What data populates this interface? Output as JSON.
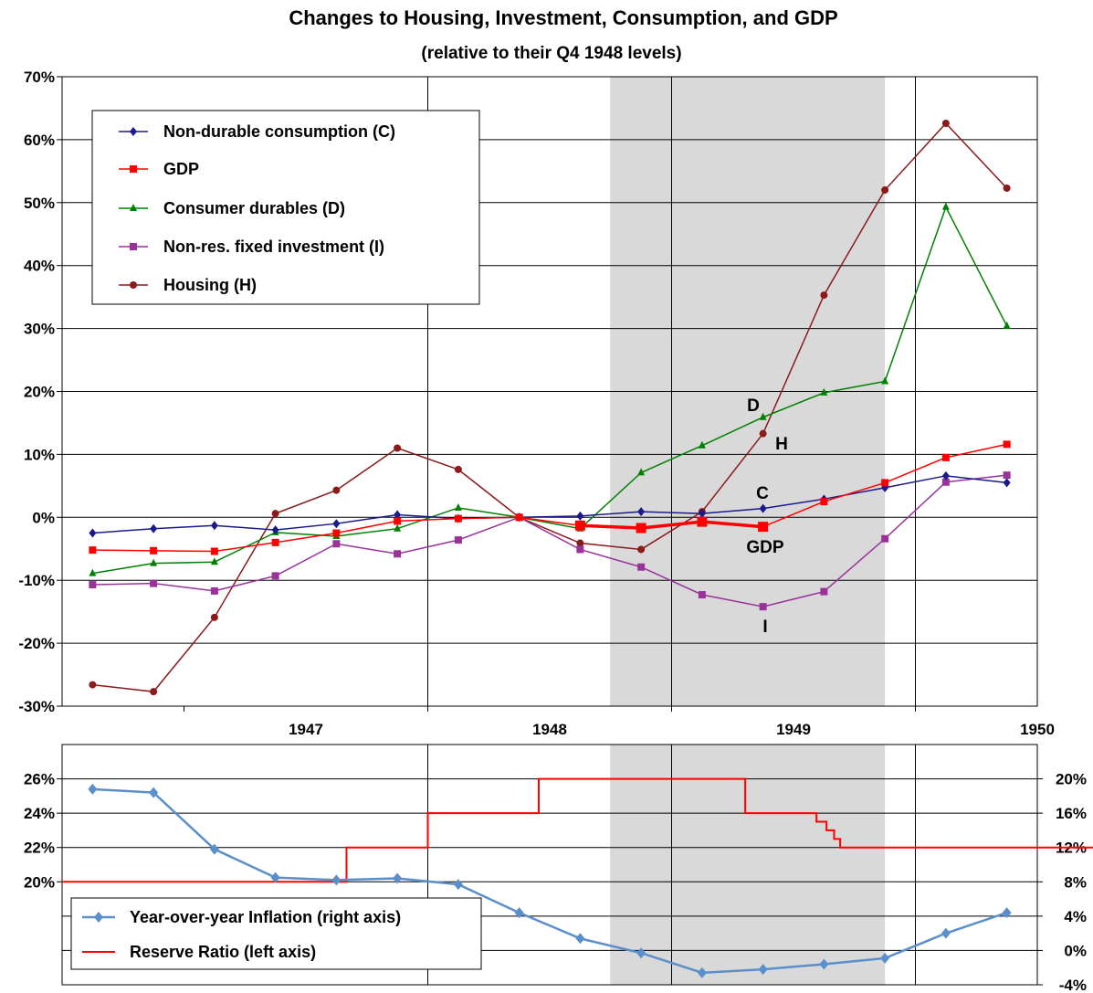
{
  "chart_data": [
    {
      "type": "line",
      "title": "Changes to Housing, Investment, Consumption, and GDP",
      "subtitle": "(relative to their Q4 1948 levels)",
      "xlabel": "",
      "ylabel": "",
      "x_tick_labels": [
        "1947",
        "1948",
        "1949",
        "1950"
      ],
      "y_tick_labels": [
        "70%",
        "60%",
        "50%",
        "40%",
        "30%",
        "20%",
        "10%",
        "0%",
        "-10%",
        "-20%",
        "-30%"
      ],
      "ylim": [
        -30,
        70
      ],
      "grid": true,
      "legend_position": "top-left",
      "x": [
        "1946-Q3",
        "1946-Q4",
        "1947-Q1",
        "1947-Q2",
        "1947-Q3",
        "1947-Q4",
        "1948-Q1",
        "1948-Q2",
        "1948-Q3",
        "1948-Q4",
        "1949-Q1",
        "1949-Q2",
        "1949-Q3",
        "1949-Q4",
        "1950-Q1",
        "1950-Q2"
      ],
      "recession_shading": [
        "1948-Q4",
        "1949-Q4"
      ],
      "series": [
        {
          "name": "Non-durable  consumption  (C)",
          "color": "#1a1a8c",
          "marker": "diamond",
          "values": [
            -2.5,
            -1.8,
            -1.3,
            -2.0,
            -1.0,
            0.4,
            -0.2,
            0.0,
            0.2,
            0.9,
            0.6,
            1.4,
            2.9,
            4.7,
            6.6,
            5.5
          ]
        },
        {
          "name": "GDP",
          "color": "#ff0000",
          "marker": "square",
          "values": [
            -5.2,
            -5.3,
            -5.4,
            -4.0,
            -2.5,
            -0.6,
            -0.2,
            0.0,
            -1.3,
            -1.7,
            -0.7,
            -1.5,
            2.5,
            5.5,
            9.5,
            11.6
          ]
        },
        {
          "name": "Consumer  durables  (D)",
          "color": "#008000",
          "marker": "triangle",
          "values": [
            -8.9,
            -7.3,
            -7.1,
            -2.4,
            -3.0,
            -1.8,
            1.5,
            0.0,
            -1.8,
            7.1,
            11.4,
            15.9,
            19.8,
            21.6,
            49.3,
            30.4
          ]
        },
        {
          "name": "Non-res.  fixed  investment  (I)",
          "color": "#993399",
          "marker": "square",
          "values": [
            -10.7,
            -10.5,
            -11.7,
            -9.3,
            -4.2,
            -5.8,
            -3.6,
            0.0,
            -5.1,
            -7.9,
            -12.3,
            -14.2,
            -11.8,
            -3.4,
            5.6,
            6.7
          ]
        },
        {
          "name": "Housing   (H)",
          "color": "#8b1a1a",
          "marker": "circle",
          "values": [
            -26.6,
            -27.7,
            -15.9,
            0.6,
            4.3,
            11.0,
            7.6,
            0.0,
            -4.1,
            -5.1,
            0.9,
            13.3,
            35.3,
            52.0,
            62.6,
            52.3
          ]
        }
      ],
      "annotations": [
        "D",
        "H",
        "C",
        "GDP",
        "I"
      ]
    },
    {
      "type": "line",
      "title": "",
      "xlabel": "",
      "left_axis": {
        "tick_labels": [
          "26%",
          "24%",
          "22%",
          "20%"
        ],
        "ylim": [
          14,
          28
        ]
      },
      "right_axis": {
        "tick_labels": [
          "20%",
          "16%",
          "12%",
          "8%",
          "4%",
          "0%",
          "-4%"
        ],
        "ylim": [
          -4,
          24
        ]
      },
      "grid": true,
      "legend_position": "bottom-left",
      "series": [
        {
          "name": "Year-over-year  Inflation (right axis)",
          "axis": "right",
          "color": "#5b8fcb",
          "marker": "diamond",
          "x": [
            "1946-Q3",
            "1946-Q4",
            "1947-Q1",
            "1947-Q2",
            "1947-Q3",
            "1947-Q4",
            "1948-Q1",
            "1948-Q2",
            "1948-Q3",
            "1948-Q4",
            "1949-Q1",
            "1949-Q2",
            "1949-Q3",
            "1949-Q4",
            "1950-Q1",
            "1950-Q2"
          ],
          "values": [
            18.8,
            18.4,
            11.8,
            8.5,
            8.2,
            8.4,
            7.7,
            4.4,
            1.4,
            -0.3,
            -2.6,
            -2.2,
            -1.6,
            -0.9,
            2.0,
            4.4
          ]
        },
        {
          "name": "Reserve Ratio (left axis)",
          "axis": "left",
          "color": "#ff0000",
          "step": true,
          "points": [
            {
              "date": "1946-07-01",
              "value": 20
            },
            {
              "date": "1947-09-01",
              "value": 22
            },
            {
              "date": "1948-01-01",
              "value": 24
            },
            {
              "date": "1948-06-15",
              "value": 26
            },
            {
              "date": "1949-04-20",
              "value": 24
            },
            {
              "date": "1949-08-05",
              "value": 23.5
            },
            {
              "date": "1949-08-20",
              "value": 23
            },
            {
              "date": "1949-09-01",
              "value": 22.5
            },
            {
              "date": "1949-09-10",
              "value": 22
            },
            {
              "date": "1950-09-30",
              "value": 22
            }
          ]
        }
      ]
    }
  ]
}
